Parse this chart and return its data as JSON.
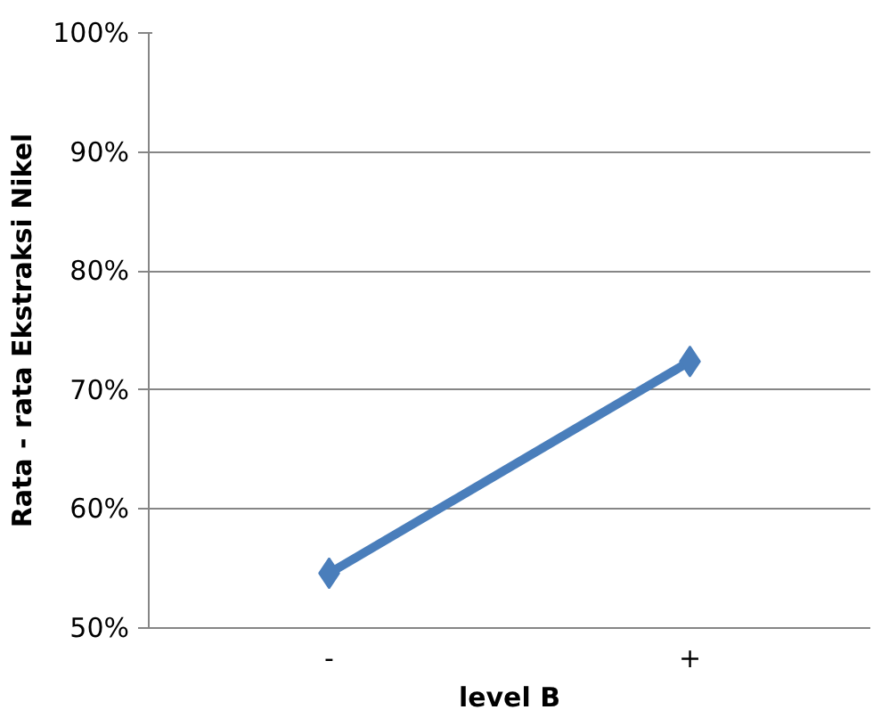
{
  "chart_data": {
    "type": "line",
    "xlabel": "level B",
    "ylabel": "Rata - rata Ekstraksi Nikel",
    "categories": [
      "-",
      "+"
    ],
    "series": [
      {
        "color": "#4a7ebb",
        "values": [
          54.6,
          72.4
        ]
      }
    ],
    "marker": "diamond",
    "grid": "y",
    "ylim": [
      50,
      100
    ],
    "yticks": [
      {
        "value": 50,
        "label": "50%"
      },
      {
        "value": 60,
        "label": "60%"
      },
      {
        "value": 70,
        "label": "70%"
      },
      {
        "value": 80,
        "label": "80%"
      },
      {
        "value": 90,
        "label": "90%"
      },
      {
        "value": 100,
        "label": "100%"
      }
    ]
  }
}
